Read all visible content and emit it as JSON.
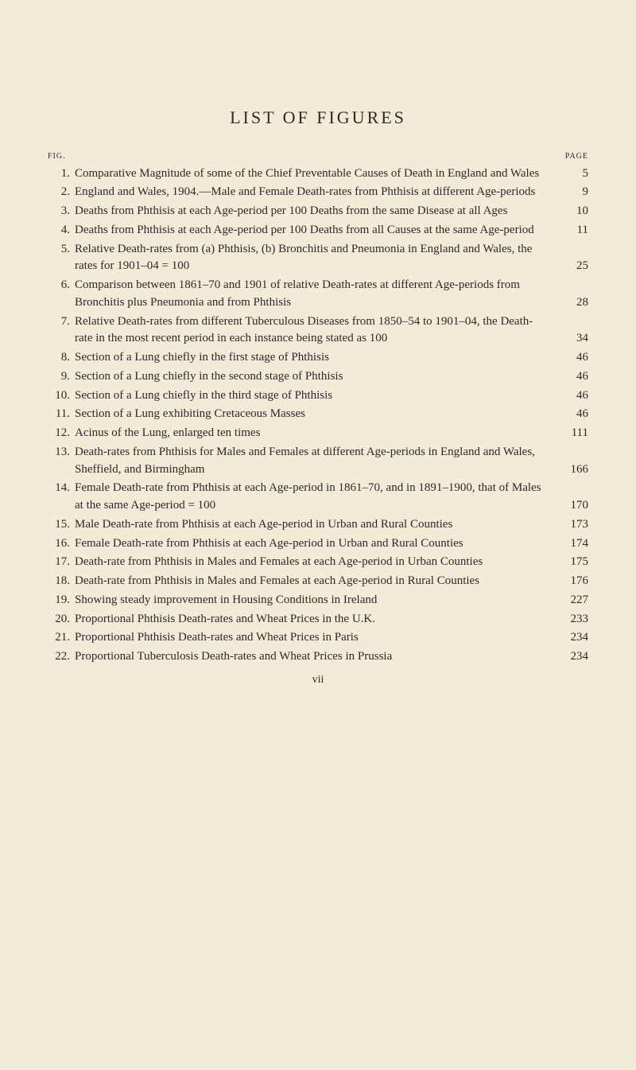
{
  "colors": {
    "background": "#f2ebd8",
    "text": "#2a2a2a"
  },
  "title": "LIST OF FIGURES",
  "headerLeft": "FIG.",
  "headerRight": "PAGE",
  "footer": "vii",
  "entries": [
    {
      "num": "1.",
      "text": "Comparative Magnitude of some of the Chief Preventable Causes of Death in England and Wales",
      "page": "5"
    },
    {
      "num": "2.",
      "text": "England and Wales, 1904.—Male and Female Death-rates from Phthisis at different Age-periods",
      "page": "9"
    },
    {
      "num": "3.",
      "text": "Deaths from Phthisis at each Age-period per 100 Deaths from the same Disease at all Ages",
      "page": "10"
    },
    {
      "num": "4.",
      "text": "Deaths from Phthisis at each Age-period per 100 Deaths from all Causes at the same Age-period",
      "page": "11"
    },
    {
      "num": "5.",
      "text": "Relative Death-rates from (a) Phthisis, (b) Bronchitis and Pneumonia in England and Wales, the rates for 1901–04 = 100",
      "page": "25"
    },
    {
      "num": "6.",
      "text": "Comparison between 1861–70 and 1901 of relative Death-rates at different Age-periods from Bronchitis plus Pneumonia and from Phthisis",
      "page": "28"
    },
    {
      "num": "7.",
      "text": "Relative Death-rates from different Tuberculous Diseases from 1850–54 to 1901–04, the Death-rate in the most recent period in each instance being stated as 100",
      "page": "34"
    },
    {
      "num": "8.",
      "text": "Section of a Lung chiefly in the first stage of Phthisis",
      "page": "46"
    },
    {
      "num": "9.",
      "text": "Section of a Lung chiefly in the second stage of Phthisis",
      "page": "46"
    },
    {
      "num": "10.",
      "text": "Section of a Lung chiefly in the third stage of Phthisis",
      "page": "46"
    },
    {
      "num": "11.",
      "text": "Section of a Lung exhibiting Cretaceous Masses",
      "page": "46"
    },
    {
      "num": "12.",
      "text": "Acinus of the Lung, enlarged ten times",
      "page": "111"
    },
    {
      "num": "13.",
      "text": "Death-rates from Phthisis for Males and Females at different Age-periods in England and Wales, Sheffield, and Birmingham",
      "page": "166"
    },
    {
      "num": "14.",
      "text": "Female Death-rate from Phthisis at each Age-period in 1861–70, and in 1891–1900, that of Males at the same Age-period = 100",
      "page": "170"
    },
    {
      "num": "15.",
      "text": "Male Death-rate from Phthisis at each Age-period in Urban and Rural Counties",
      "page": "173"
    },
    {
      "num": "16.",
      "text": "Female Death-rate from Phthisis at each Age-period in Urban and Rural Counties",
      "page": "174"
    },
    {
      "num": "17.",
      "text": "Death-rate from Phthisis in Males and Females at each Age-period in Urban Counties",
      "page": "175"
    },
    {
      "num": "18.",
      "text": "Death-rate from Phthisis in Males and Females at each Age-period in Rural Counties",
      "page": "176"
    },
    {
      "num": "19.",
      "text": "Showing steady improvement in Housing Conditions in Ireland",
      "page": "227"
    },
    {
      "num": "20.",
      "text": "Proportional Phthisis Death-rates and Wheat Prices in the U.K.",
      "page": "233"
    },
    {
      "num": "21.",
      "text": "Proportional Phthisis Death-rates and Wheat Prices in Paris",
      "page": "234"
    },
    {
      "num": "22.",
      "text": "Proportional Tuberculosis Death-rates and Wheat Prices in Prussia",
      "page": "234"
    }
  ]
}
